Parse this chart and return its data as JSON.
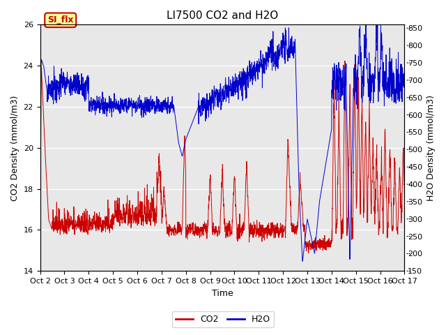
{
  "title": "LI7500 CO2 and H2O",
  "xlabel": "Time",
  "ylabel_left": "CO2 Density (mmol/m3)",
  "ylabel_right": "H2O Density (mmol/m3)",
  "xlim_days": [
    0,
    15
  ],
  "ylim_left": [
    14,
    26
  ],
  "ylim_right": [
    150,
    860
  ],
  "xtick_labels": [
    "Oct 2",
    "Oct 3",
    "Oct 4",
    "Oct 5",
    "Oct 6",
    "Oct 7",
    "Oct 8",
    "Oct 9",
    "Oct 10",
    "Oct 11",
    "Oct 12",
    "Oct 13",
    "Oct 14",
    "Oct 15",
    "Oct 16",
    "Oct 17"
  ],
  "yticks_left": [
    14,
    16,
    18,
    20,
    22,
    24,
    26
  ],
  "yticks_right": [
    150,
    200,
    250,
    300,
    350,
    400,
    450,
    500,
    550,
    600,
    650,
    700,
    750,
    800,
    850
  ],
  "legend_co2": "CO2",
  "legend_h2o": "H2O",
  "co2_color": "#CC0000",
  "h2o_color": "#0000CC",
  "tab_label": "SI_flx",
  "tab_bg": "#FFFF99",
  "tab_border": "#CC0000",
  "tab_text_color": "#CC0000",
  "grid_color": "#FFFFFF",
  "bg_color": "#E8E8E8",
  "fig_bg": "#FFFFFF",
  "title_fontsize": 11,
  "axis_label_fontsize": 9,
  "tick_fontsize": 8
}
